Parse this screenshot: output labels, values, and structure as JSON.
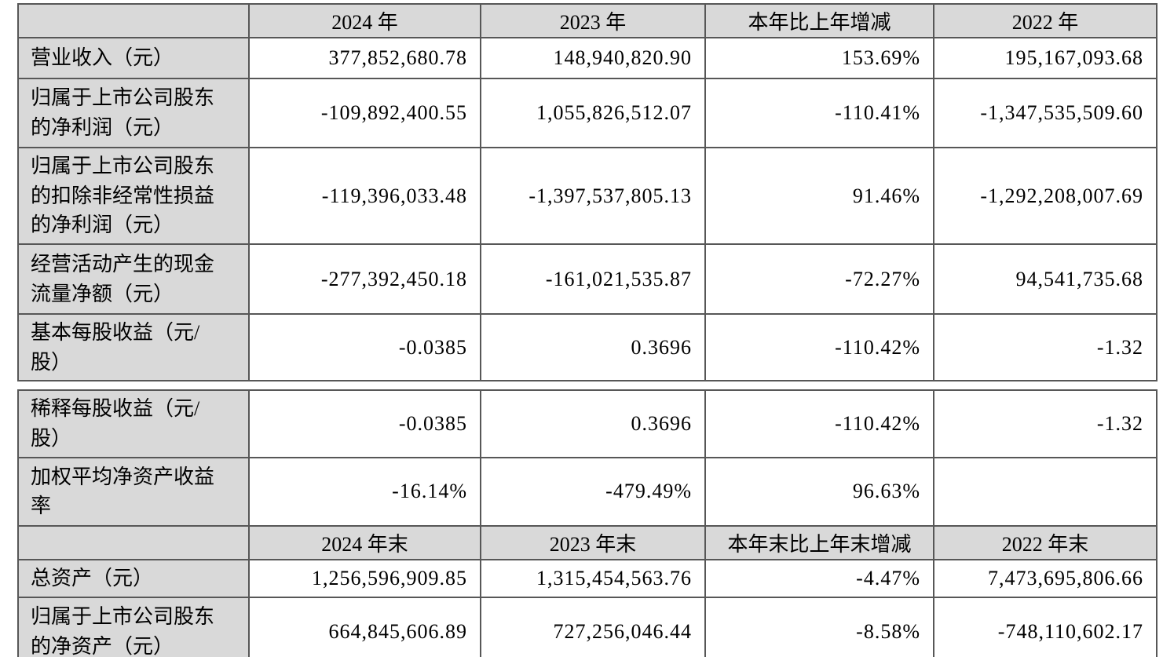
{
  "styles": {
    "header_bg": "#d9d9d9",
    "label_bg": "#d9d9d9",
    "border_color": "#575757",
    "text_color": "#000000"
  },
  "sections": [
    {
      "header": [
        "",
        "2024 年",
        "2023 年",
        "本年比上年增减",
        "2022 年"
      ],
      "rows": [
        {
          "label": "营业收入（元）",
          "values": [
            "377,852,680.78",
            "148,940,820.90",
            "153.69%",
            "195,167,093.68"
          ]
        },
        {
          "label": "归属于上市公司股东\n的净利润（元）",
          "values": [
            "-109,892,400.55",
            "1,055,826,512.07",
            "-110.41%",
            "-1,347,535,509.60"
          ]
        },
        {
          "label": "归属于上市公司股东\n的扣除非经常性损益\n的净利润（元）",
          "values": [
            "-119,396,033.48",
            "-1,397,537,805.13",
            "91.46%",
            "-1,292,208,007.69"
          ]
        },
        {
          "label": "经营活动产生的现金\n流量净额（元）",
          "values": [
            "-277,392,450.18",
            "-161,021,535.87",
            "-72.27%",
            "94,541,735.68"
          ]
        },
        {
          "label": "基本每股收益（元/\n股）",
          "values": [
            "-0.0385",
            "0.3696",
            "-110.42%",
            "-1.32"
          ]
        }
      ]
    },
    {
      "pre_rows": [
        {
          "label": "稀释每股收益（元/\n股）",
          "values": [
            "-0.0385",
            "0.3696",
            "-110.42%",
            "-1.32"
          ]
        },
        {
          "label": "加权平均净资产收益\n率",
          "values": [
            "-16.14%",
            "-479.49%",
            "96.63%",
            ""
          ]
        }
      ],
      "header": [
        "",
        "2024 年末",
        "2023 年末",
        "本年末比上年末增减",
        "2022 年末"
      ],
      "rows": [
        {
          "label": "总资产（元）",
          "values": [
            "1,256,596,909.85",
            "1,315,454,563.76",
            "-4.47%",
            "7,473,695,806.66"
          ]
        },
        {
          "label": "归属于上市公司股东\n的净资产（元）",
          "values": [
            "664,845,606.89",
            "727,256,046.44",
            "-8.58%",
            "-748,110,602.17"
          ]
        }
      ]
    }
  ]
}
